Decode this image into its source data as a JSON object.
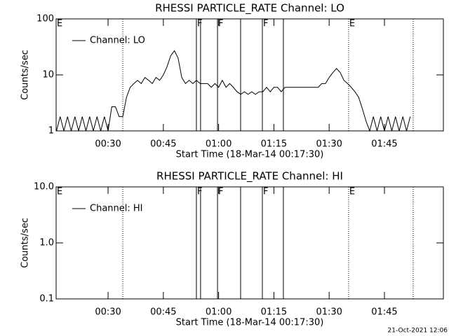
{
  "chart_data": [
    {
      "type": "line",
      "title": "RHESSI PARTICLE_RATE Channel: LO",
      "x_label": "Start Time (18-Mar-14 00:17:30)",
      "y_label": "Counts/sec",
      "log_y": true,
      "legend": "upper left",
      "xlim": [
        15.9,
        121.0
      ],
      "ylim": [
        1,
        100
      ],
      "xticks": [
        {
          "value": 30,
          "label": "00:30"
        },
        {
          "value": 45,
          "label": "00:45"
        },
        {
          "value": 60,
          "label": "01:00"
        },
        {
          "value": 75,
          "label": "01:15"
        },
        {
          "value": 90,
          "label": "01:30"
        },
        {
          "value": 105,
          "label": "01:45"
        }
      ],
      "yticks": [
        1,
        10,
        100
      ],
      "x": [
        16,
        17,
        18,
        19,
        20,
        21,
        22,
        23,
        24,
        25,
        26,
        27,
        28,
        29,
        30,
        31,
        32,
        33,
        34,
        35,
        36,
        37,
        38,
        39,
        40,
        41,
        42,
        43,
        44,
        45,
        46,
        47,
        48,
        49,
        50,
        51,
        52,
        53,
        54,
        55,
        56,
        57,
        58,
        59,
        60,
        61,
        62,
        63,
        64,
        65,
        66,
        67,
        68,
        69,
        70,
        71,
        72,
        73,
        74,
        75,
        76,
        77,
        78,
        79,
        80,
        81,
        82,
        83,
        84,
        85,
        86,
        87,
        88,
        89,
        90,
        91,
        92,
        93,
        94,
        95,
        96,
        97,
        98,
        99,
        100,
        101,
        102,
        103,
        104,
        105,
        106,
        107,
        108,
        109,
        110,
        111,
        112
      ],
      "series": [
        {
          "name": "Channel: LO",
          "color": "#000000",
          "values": [
            1,
            1.8,
            1,
            1.8,
            1,
            1.8,
            1,
            1.8,
            1,
            1.8,
            1,
            1.8,
            1,
            1.8,
            1,
            2.7,
            2.7,
            1.8,
            1.8,
            4,
            6,
            7,
            8,
            7,
            9,
            8,
            7,
            9,
            8,
            10,
            14,
            22,
            27,
            20,
            9,
            7,
            8,
            7,
            8,
            7,
            7,
            7,
            6,
            7,
            6,
            8,
            6,
            7,
            6,
            5,
            4.5,
            5,
            4.5,
            5,
            4.5,
            5,
            5,
            6,
            5,
            6,
            6,
            5,
            6,
            6,
            6,
            6,
            6,
            6,
            6,
            6,
            6,
            6,
            7,
            7,
            9,
            11,
            13,
            11,
            8,
            7,
            6,
            5,
            4,
            2.5,
            1.5,
            1,
            1.8,
            1,
            1.8,
            1,
            1.8,
            1,
            1.8,
            1,
            1.8,
            1,
            1.8
          ]
        }
      ],
      "vlines": [
        {
          "x": 34.0,
          "style": "dotted"
        },
        {
          "x": 53.97,
          "style": "solid"
        },
        {
          "x": 55.1,
          "style": "solid"
        },
        {
          "x": 59.7,
          "style": "solid"
        },
        {
          "x": 65.97,
          "style": "solid"
        },
        {
          "x": 71.87,
          "style": "solid"
        },
        {
          "x": 77.58,
          "style": "solid"
        },
        {
          "x": 95.28,
          "style": "dotted"
        },
        {
          "x": 112.8,
          "style": "dotted"
        }
      ],
      "flags": [
        {
          "x": 15.9,
          "label": "E"
        },
        {
          "x": 53.97,
          "label": "F"
        },
        {
          "x": 59.7,
          "label": "F"
        },
        {
          "x": 71.87,
          "label": "F"
        },
        {
          "x": 95.28,
          "label": "E"
        }
      ]
    },
    {
      "type": "line",
      "title": "RHESSI PARTICLE_RATE Channel: HI",
      "x_label": "Start Time (18-Mar-14 00:17:30)",
      "y_label": "Counts/sec",
      "log_y": true,
      "legend": "upper left",
      "xlim": [
        15.9,
        121.0
      ],
      "ylim": [
        0.1,
        10
      ],
      "xticks": [
        {
          "value": 30,
          "label": "00:30"
        },
        {
          "value": 45,
          "label": "00:45"
        },
        {
          "value": 60,
          "label": "01:00"
        },
        {
          "value": 75,
          "label": "01:15"
        },
        {
          "value": 90,
          "label": "01:30"
        },
        {
          "value": 105,
          "label": "01:45"
        }
      ],
      "yticks": [
        0.1,
        {
          "value": 1,
          "label": "1.0"
        },
        {
          "value": 10,
          "label": "10.0"
        }
      ],
      "x": [],
      "series": [
        {
          "name": "Channel: HI",
          "color": "#000000",
          "values": []
        }
      ],
      "vlines": [
        {
          "x": 34.0,
          "style": "dotted"
        },
        {
          "x": 53.97,
          "style": "solid"
        },
        {
          "x": 55.1,
          "style": "solid"
        },
        {
          "x": 59.7,
          "style": "solid"
        },
        {
          "x": 65.97,
          "style": "solid"
        },
        {
          "x": 71.87,
          "style": "solid"
        },
        {
          "x": 77.58,
          "style": "solid"
        },
        {
          "x": 95.28,
          "style": "dotted"
        },
        {
          "x": 112.8,
          "style": "dotted"
        }
      ],
      "flags": [
        {
          "x": 15.9,
          "label": "E"
        },
        {
          "x": 53.97,
          "label": "F"
        },
        {
          "x": 59.7,
          "label": "F"
        },
        {
          "x": 71.87,
          "label": "F"
        },
        {
          "x": 95.28,
          "label": "E"
        }
      ]
    }
  ],
  "footer": "21-Oct-2021 12:06"
}
